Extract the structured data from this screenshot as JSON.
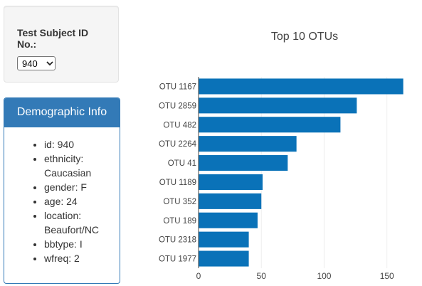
{
  "selector": {
    "label": "Test Subject ID No.:",
    "selected": "940"
  },
  "demographics": {
    "title": "Demographic Info",
    "items": [
      "id: 940",
      "ethnicity: Caucasian",
      "gender: F",
      "age: 24",
      "location: Beaufort/NC",
      "bbtype: I",
      "wfreq: 2"
    ]
  },
  "colors": {
    "bar": "#0a72b8",
    "panel_primary": "#337ab7"
  },
  "chart_data": {
    "type": "bar",
    "orientation": "horizontal",
    "title": "Top 10 OTUs",
    "xlabel": "",
    "ylabel": "",
    "categories": [
      "OTU 1167",
      "OTU 2859",
      "OTU 482",
      "OTU 2264",
      "OTU 41",
      "OTU 1189",
      "OTU 352",
      "OTU 189",
      "OTU 2318",
      "OTU 1977"
    ],
    "values": [
      163,
      126,
      113,
      78,
      71,
      51,
      50,
      47,
      40,
      40
    ],
    "xlim": [
      0,
      170
    ],
    "xticks": [
      0,
      50,
      100,
      150
    ],
    "grid": true
  }
}
